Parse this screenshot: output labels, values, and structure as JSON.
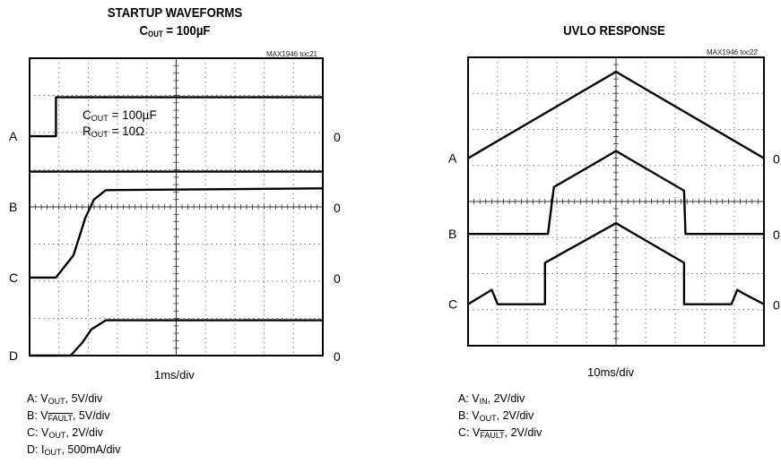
{
  "chart_data": [
    {
      "type": "line",
      "title": "STARTUP WAVEFORMS",
      "subtitle": {
        "pre": "C",
        "sub": "OUT",
        "post": " = 100µF"
      },
      "tag": "MAX1946 toc21",
      "xlabel": "1ms/div",
      "x_divisions": 10,
      "y_divisions": 8,
      "xlim": [
        0,
        10
      ],
      "ylim": [
        0,
        8
      ],
      "grid": true,
      "annotation": {
        "line1": {
          "pre": "C",
          "sub": "OUT",
          "post": " = 100µF"
        },
        "line2": {
          "pre": "R",
          "sub": "OUT",
          "post": " = 10Ω"
        }
      },
      "channels": [
        {
          "name": "A",
          "zero_label": "0",
          "zero_level": 5.9
        },
        {
          "name": "B",
          "zero_label": "0",
          "zero_level": 4.0
        },
        {
          "name": "C",
          "zero_label": "0",
          "zero_level": 2.1
        },
        {
          "name": "D",
          "zero_label": "0",
          "zero_level": 0.0
        }
      ],
      "series": [
        {
          "name": "A",
          "x": [
            0,
            0.9,
            0.9,
            10
          ],
          "y": [
            5.9,
            5.9,
            6.95,
            6.95
          ]
        },
        {
          "name": "B",
          "x": [
            0,
            10
          ],
          "y": [
            4.95,
            4.95
          ]
        },
        {
          "name": "C",
          "x": [
            0,
            0.9,
            1.5,
            1.9,
            2.2,
            2.6,
            10
          ],
          "y": [
            2.1,
            2.1,
            2.7,
            3.7,
            4.2,
            4.45,
            4.5
          ]
        },
        {
          "name": "D",
          "x": [
            0,
            1.4,
            1.8,
            2.1,
            2.6,
            10
          ],
          "y": [
            0,
            0,
            0.35,
            0.7,
            0.95,
            0.95
          ]
        }
      ],
      "legend": [
        {
          "pre": "A: V",
          "sub": "OUT",
          "post": ", 5V/div"
        },
        {
          "pre": "B: V",
          "ovl": "FAULT",
          "post": ", 5V/div"
        },
        {
          "pre": "C: V",
          "sub": "OUT",
          "post": ", 2V/div"
        },
        {
          "pre": "D: I",
          "sub": "OUT",
          "post": ", 500mA/div"
        }
      ]
    },
    {
      "type": "line",
      "title": "UVLO RESPONSE",
      "tag": "MAX1946 toc22",
      "xlabel": "10ms/div",
      "x_divisions": 10,
      "y_divisions": 8,
      "xlim": [
        0,
        10
      ],
      "ylim": [
        0,
        8
      ],
      "grid": true,
      "channels": [
        {
          "name": "A",
          "zero_label": "0",
          "zero_level": 5.2
        },
        {
          "name": "B",
          "zero_label": "0",
          "zero_level": 3.1
        },
        {
          "name": "C",
          "zero_label": "0",
          "zero_level": 1.15
        }
      ],
      "series": [
        {
          "name": "A",
          "x": [
            0,
            5,
            10
          ],
          "y": [
            5.2,
            7.6,
            5.2
          ]
        },
        {
          "name": "B",
          "x": [
            0,
            2.7,
            2.9,
            5,
            7.3,
            7.35,
            10
          ],
          "y": [
            3.1,
            3.1,
            4.4,
            5.4,
            4.3,
            3.1,
            3.1
          ]
        },
        {
          "name": "C",
          "x": [
            0,
            0.6,
            0.8,
            1.0,
            2.6,
            2.6,
            5,
            7.3,
            7.3,
            8.9,
            9.1,
            9.3,
            10
          ],
          "y": [
            1.15,
            1.45,
            1.55,
            1.15,
            1.15,
            2.3,
            3.4,
            2.3,
            1.15,
            1.15,
            1.55,
            1.45,
            1.15
          ]
        }
      ],
      "legend": [
        {
          "pre": "A: V",
          "sub": "IN",
          "post": ", 2V/div"
        },
        {
          "pre": "B: V",
          "sub": "OUT",
          "post": ", 2V/div"
        },
        {
          "pre": "C: V",
          "ovl": "FAULT",
          "post": ", 2V/div"
        }
      ]
    }
  ]
}
